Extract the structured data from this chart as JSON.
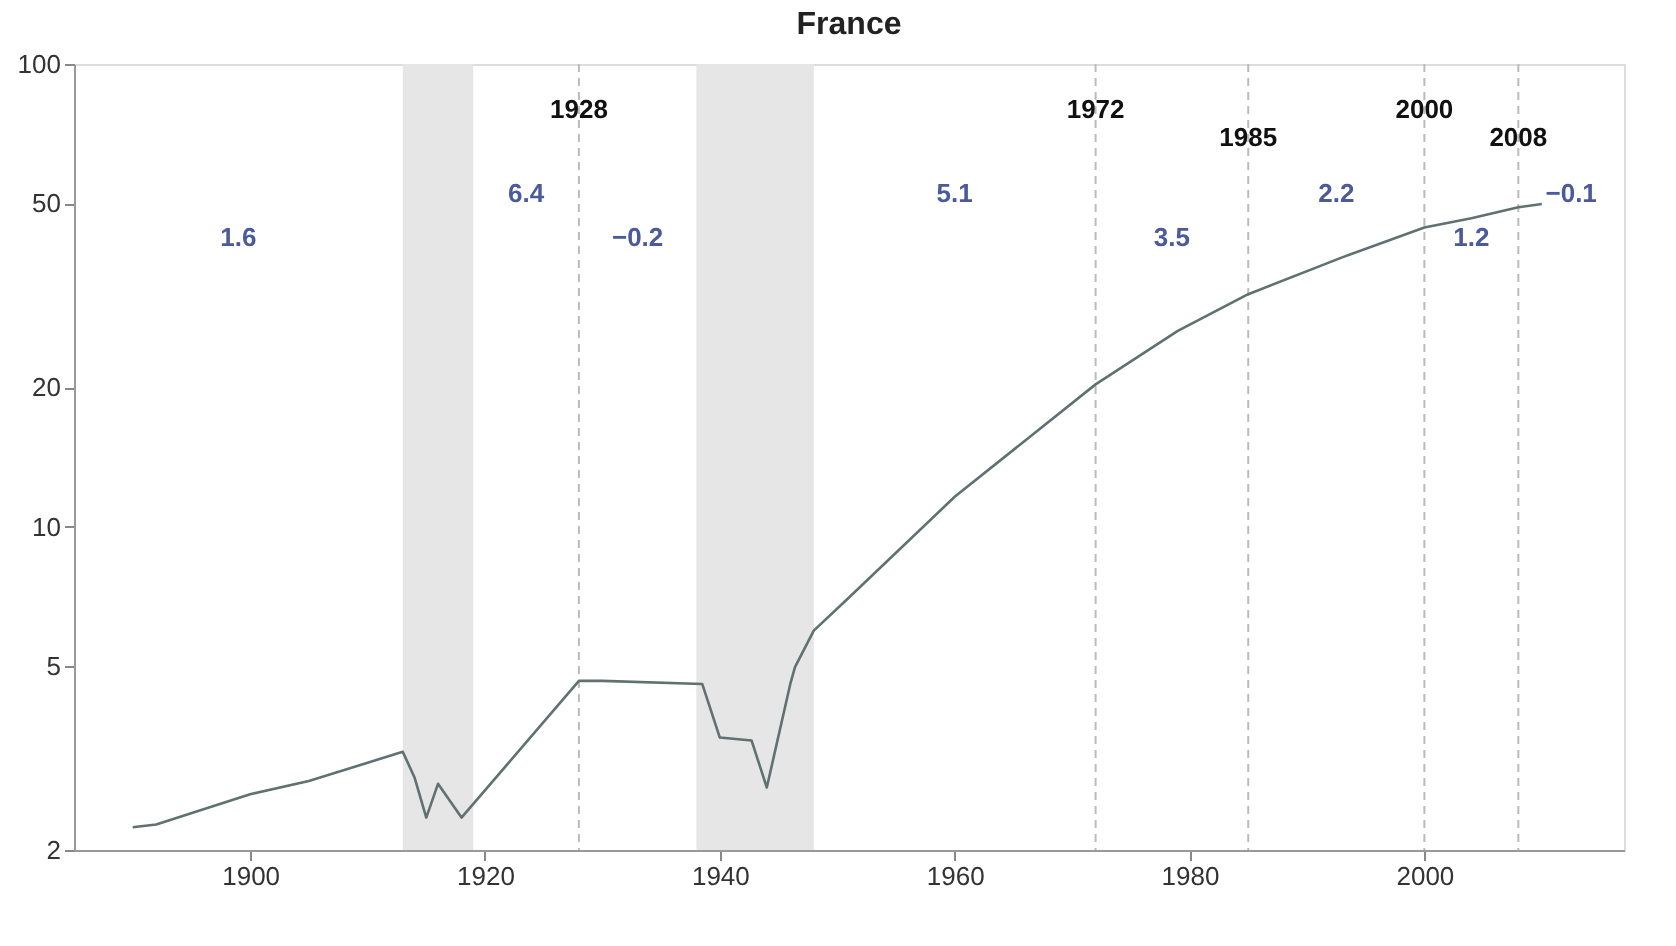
{
  "chart_data": {
    "type": "line",
    "title": "France",
    "x": [
      1890,
      1892,
      1900,
      1905,
      1913,
      1914,
      1915,
      1916,
      1918,
      1928,
      1930,
      1938.5,
      1940,
      1942.7,
      1944,
      1946,
      1946.4,
      1948,
      1951,
      1960,
      1972,
      1979,
      1985,
      1993,
      2000,
      2004,
      2008,
      2010
    ],
    "series": [
      {
        "color": "#5f7170",
        "values": [
          2.24,
          2.27,
          2.64,
          2.82,
          3.26,
          2.87,
          2.35,
          2.78,
          2.35,
          4.64,
          4.64,
          4.57,
          3.5,
          3.45,
          2.73,
          4.57,
          4.97,
          5.96,
          7.03,
          11.6,
          20.3,
          26.5,
          31.8,
          38.2,
          44.3,
          46.4,
          49.0,
          49.8
        ]
      }
    ],
    "log": "y",
    "xlim": [
      1885,
      2017
    ],
    "ylim": [
      2,
      100
    ],
    "xticks": [
      1900,
      1920,
      1940,
      1960,
      1980,
      2000
    ],
    "yticks": [
      2,
      5,
      10,
      20,
      50,
      100
    ],
    "grid": false,
    "marker": "none",
    "line_style": "solid",
    "bands": [
      {
        "axis": "x",
        "from": 1913,
        "to": 1919,
        "color": "#e6e6e6"
      },
      {
        "axis": "x",
        "from": 1938,
        "to": 1948,
        "color": "#e6e6e6"
      }
    ],
    "ref_lines": [
      {
        "axis": "x",
        "value": 1928,
        "label": "1928",
        "line_style": "dashed",
        "color": "#bbbbbb"
      },
      {
        "axis": "x",
        "value": 1972,
        "label": "1972",
        "line_style": "dashed",
        "color": "#bbbbbb"
      },
      {
        "axis": "x",
        "value": 1985,
        "label": "1985",
        "line_style": "dashed",
        "color": "#bbbbbb"
      },
      {
        "axis": "x",
        "value": 2000,
        "label": "2000",
        "line_style": "dashed",
        "color": "#bbbbbb"
      },
      {
        "axis": "x",
        "value": 2008,
        "label": "2008",
        "line_style": "dashed",
        "color": "#bbbbbb"
      }
    ],
    "annotations": [
      "1.6",
      "6.4",
      "−0.2",
      "5.1",
      "3.5",
      "2.2",
      "1.2",
      "−0.1"
    ]
  }
}
